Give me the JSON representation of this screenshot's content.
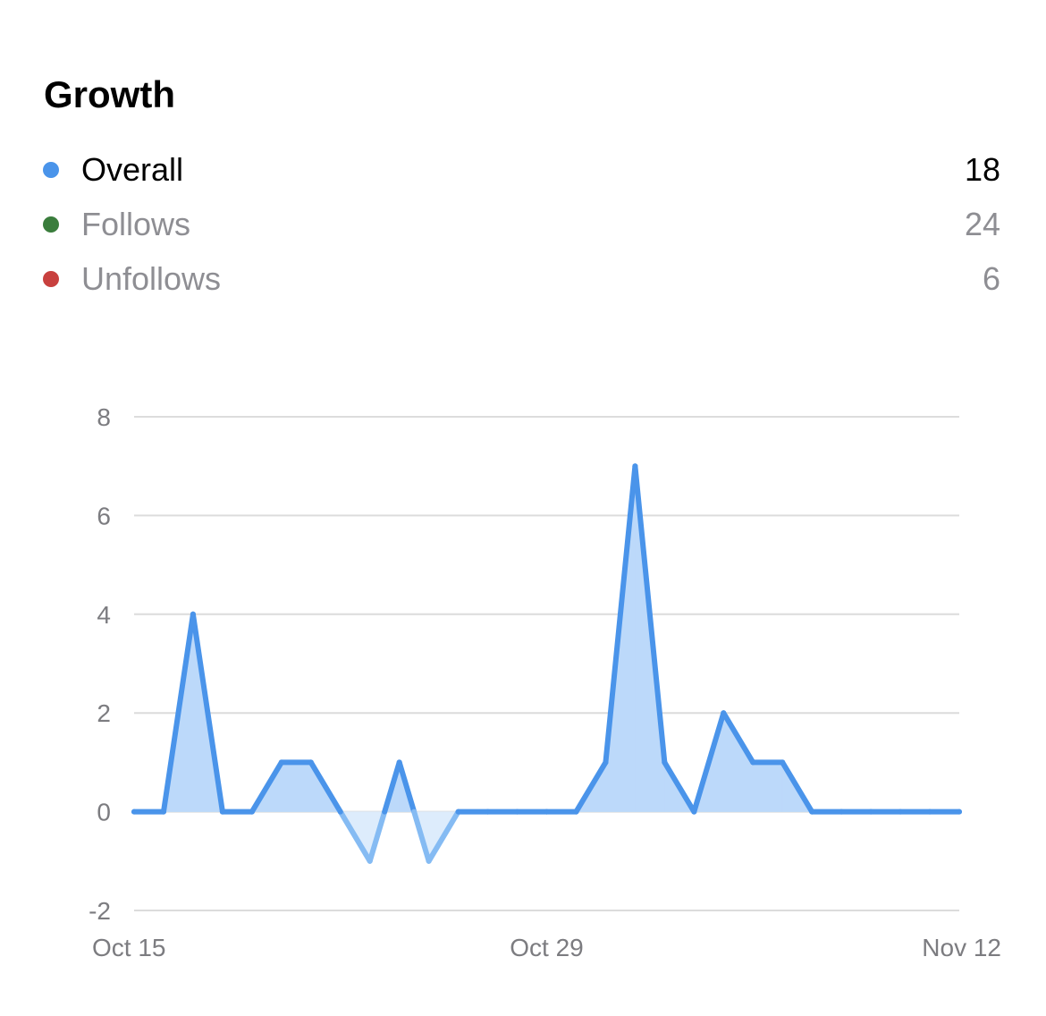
{
  "title": "Growth",
  "legend": [
    {
      "label": "Overall",
      "value": "18",
      "color": "#4a94ea",
      "active": true
    },
    {
      "label": "Follows",
      "value": "24",
      "color": "#3a7d3c",
      "active": false
    },
    {
      "label": "Unfollows",
      "value": "6",
      "color": "#c8403e",
      "active": false
    }
  ],
  "chart_data": {
    "type": "area",
    "x": [
      "Oct 15",
      "Oct 16",
      "Oct 17",
      "Oct 18",
      "Oct 19",
      "Oct 20",
      "Oct 21",
      "Oct 22",
      "Oct 23",
      "Oct 24",
      "Oct 25",
      "Oct 26",
      "Oct 27",
      "Oct 28",
      "Oct 29",
      "Oct 30",
      "Oct 31",
      "Nov 1",
      "Nov 2",
      "Nov 3",
      "Nov 4",
      "Nov 5",
      "Nov 6",
      "Nov 7",
      "Nov 8",
      "Nov 9",
      "Nov 10",
      "Nov 11",
      "Nov 12"
    ],
    "series": [
      {
        "name": "Overall",
        "values": [
          0,
          0,
          4,
          0,
          0,
          1,
          1,
          0,
          -1,
          1,
          -1,
          0,
          0,
          0,
          0,
          0,
          1,
          7,
          1,
          0,
          2,
          1,
          1,
          0,
          0,
          0,
          0,
          0,
          0
        ]
      }
    ],
    "ylim": [
      -2,
      8
    ],
    "yticks": [
      "8",
      "6",
      "4",
      "2",
      "0",
      "-2"
    ],
    "xticks": [
      "Oct 15",
      "Oct 29",
      "Nov 12"
    ],
    "grid": true,
    "line_color": "#4a94ea",
    "fill_color": "#bcd9fa",
    "negative_line_color": "#85bbf3",
    "negative_fill_color": "#ddecfc"
  }
}
